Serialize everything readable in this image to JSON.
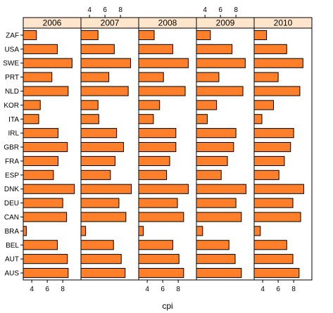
{
  "chart_data": {
    "type": "bar",
    "orientation": "horizontal",
    "xlabel": "cpi",
    "ylabel": "",
    "xlim": [
      2.9,
      10.35
    ],
    "xticks": [
      4,
      6,
      8
    ],
    "panels": [
      "2006",
      "2007",
      "2008",
      "2009",
      "2010"
    ],
    "categories": [
      "ZAF",
      "USA",
      "SWE",
      "PRT",
      "NLD",
      "KOR",
      "ITA",
      "IRL",
      "GBR",
      "FRA",
      "ESP",
      "DNK",
      "DEU",
      "CAN",
      "BRA",
      "BEL",
      "AUT",
      "AUS"
    ],
    "series": [
      {
        "name": "2006",
        "values": [
          4.6,
          7.3,
          9.2,
          6.6,
          8.7,
          5.1,
          4.9,
          7.4,
          8.6,
          7.4,
          6.8,
          9.5,
          8.0,
          8.5,
          3.3,
          7.3,
          8.6,
          8.7
        ]
      },
      {
        "name": "2007",
        "values": [
          5.1,
          7.2,
          9.3,
          6.5,
          9.0,
          5.1,
          5.2,
          7.5,
          8.4,
          7.3,
          6.7,
          9.4,
          7.8,
          8.7,
          3.5,
          7.1,
          8.1,
          8.6
        ]
      },
      {
        "name": "2008",
        "values": [
          4.9,
          7.3,
          9.3,
          6.1,
          8.9,
          5.6,
          4.8,
          7.7,
          7.7,
          6.9,
          6.5,
          9.3,
          7.9,
          8.7,
          3.5,
          7.3,
          8.1,
          8.7
        ]
      },
      {
        "name": "2009",
        "values": [
          4.7,
          7.5,
          9.2,
          5.8,
          8.9,
          5.5,
          4.3,
          8.0,
          7.7,
          6.9,
          6.1,
          9.3,
          8.0,
          8.7,
          3.7,
          7.1,
          7.9,
          8.7
        ]
      },
      {
        "name": "2010",
        "values": [
          4.5,
          7.1,
          9.2,
          6.0,
          8.8,
          5.4,
          3.9,
          8.0,
          7.6,
          6.8,
          6.1,
          9.3,
          7.9,
          8.9,
          3.7,
          7.1,
          7.9,
          8.7
        ]
      }
    ],
    "colors": {
      "bar_fill": "#ff7f2a",
      "bar_stroke": "#000000",
      "strip_bg": "#ffe5cc",
      "frame": "#000000"
    }
  }
}
